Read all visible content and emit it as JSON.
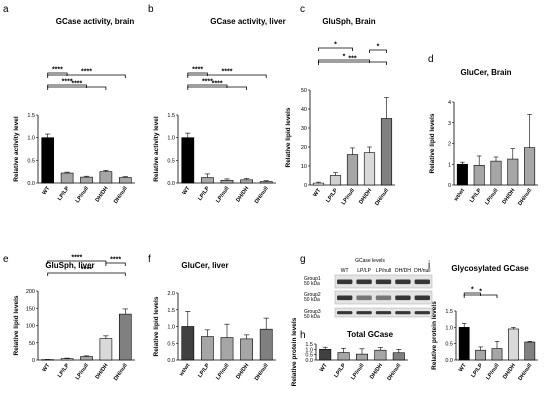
{
  "chart_data": [
    {
      "id": "a",
      "type": "bar",
      "panel_label": "a",
      "title": "GCase activity, brain",
      "ylabel": "Relative activity level",
      "categories": [
        "WT",
        "LP/LP",
        "LP/null",
        "DH/DH",
        "DH/null"
      ],
      "values": [
        1.0,
        0.22,
        0.13,
        0.25,
        0.12
      ],
      "errors": [
        0.08,
        0.02,
        0.02,
        0.03,
        0.02
      ],
      "colors": [
        "#000000",
        "#a6a6a6",
        "#a6a6a6",
        "#a6a6a6",
        "#a6a6a6"
      ],
      "ylim": [
        0,
        1.5
      ],
      "yticks": [
        0.0,
        0.5,
        1.0,
        1.5
      ],
      "tick_labels": [
        "0.0",
        "0.5",
        "1.0",
        "1.5"
      ],
      "sig": [
        {
          "from": 0,
          "to": 1,
          "label": "****"
        },
        {
          "from": 0,
          "to": 2,
          "label": "****"
        },
        {
          "from": 0,
          "to": 3,
          "label": "****"
        },
        {
          "from": 0,
          "to": 4,
          "label": "****"
        }
      ]
    },
    {
      "id": "b",
      "type": "bar",
      "panel_label": "b",
      "title": "GCase activity, liver",
      "ylabel": "Relative activity level",
      "categories": [
        "WT",
        "LP/LP",
        "LP/null",
        "DH/DH",
        "DH/null"
      ],
      "values": [
        1.0,
        0.12,
        0.06,
        0.07,
        0.03
      ],
      "errors": [
        0.1,
        0.08,
        0.03,
        0.03,
        0.02
      ],
      "colors": [
        "#000000",
        "#a6a6a6",
        "#a6a6a6",
        "#a6a6a6",
        "#a6a6a6"
      ],
      "ylim": [
        0,
        1.5
      ],
      "yticks": [
        0.0,
        0.5,
        1.0,
        1.5
      ],
      "tick_labels": [
        "0.0",
        "0.5",
        "1.0",
        "1.5"
      ],
      "sig": [
        {
          "from": 0,
          "to": 1,
          "label": "****"
        },
        {
          "from": 0,
          "to": 2,
          "label": "****"
        },
        {
          "from": 0,
          "to": 3,
          "label": "****"
        },
        {
          "from": 0,
          "to": 4,
          "label": "****"
        }
      ]
    },
    {
      "id": "c",
      "type": "bar",
      "panel_label": "c",
      "title": "GluSph, Brain",
      "ylabel": "Relative lipid levels",
      "categories": [
        "WT",
        "LP/LP",
        "LP/null",
        "DH/DH",
        "DH/null"
      ],
      "values": [
        1,
        5,
        16,
        17,
        35
      ],
      "errors": [
        0.5,
        1.5,
        3.5,
        3,
        11
      ],
      "colors": [
        "#ffffff",
        "#d0d0d0",
        "#a6a6a6",
        "#d9d9d9",
        "#808080"
      ],
      "ylim": [
        0,
        50
      ],
      "yticks": [
        0,
        10,
        20,
        30,
        40,
        50
      ],
      "tick_labels": [
        "0",
        "10",
        "20",
        "30",
        "40",
        "50"
      ],
      "sig": [
        {
          "from": 0,
          "to": 2,
          "label": "*"
        },
        {
          "from": 0,
          "to": 3,
          "label": "*"
        },
        {
          "from": 0,
          "to": 4,
          "label": "***"
        },
        {
          "from": 3,
          "to": 4,
          "label": "*"
        }
      ]
    },
    {
      "id": "d",
      "type": "bar",
      "panel_label": "d",
      "title": "GluCer, Brain",
      "ylabel": "Relative lipid levels",
      "categories": [
        "wt/wt",
        "LP/LP",
        "LP/null",
        "DH/DH",
        "DH/null"
      ],
      "values": [
        1.0,
        0.95,
        1.15,
        1.25,
        1.8
      ],
      "errors": [
        0.1,
        0.45,
        0.2,
        0.5,
        1.6
      ],
      "colors": [
        "#000000",
        "#a6a6a6",
        "#a6a6a6",
        "#a6a6a6",
        "#a6a6a6"
      ],
      "ylim": [
        0,
        4
      ],
      "yticks": [
        0,
        1,
        2,
        3,
        4
      ],
      "tick_labels": [
        "0",
        "1",
        "2",
        "3",
        "4"
      ],
      "sig": []
    },
    {
      "id": "e",
      "type": "bar",
      "panel_label": "e",
      "title": "GluSph, liver",
      "ylabel": "Relative lipid levels",
      "categories": [
        "WT",
        "LP/LP",
        "LP/null",
        "DH/DH",
        "DH/null"
      ],
      "values": [
        1,
        4,
        10,
        62,
        133
      ],
      "errors": [
        0.5,
        1.5,
        2,
        8,
        15
      ],
      "colors": [
        "#ffffff",
        "#d0d0d0",
        "#a6a6a6",
        "#d9d9d9",
        "#808080"
      ],
      "ylim": [
        0,
        200
      ],
      "yticks": [
        0,
        50,
        100,
        150,
        200
      ],
      "tick_labels": [
        "0",
        "50",
        "100",
        "150",
        "200"
      ],
      "sig": [
        {
          "from": 0,
          "to": 3,
          "label": "****"
        },
        {
          "from": 0,
          "to": 4,
          "label": "****"
        },
        {
          "from": 3,
          "to": 4,
          "label": "****"
        }
      ]
    },
    {
      "id": "f",
      "type": "bar",
      "panel_label": "f",
      "title": "GluCer, liver",
      "ylabel": "Relative lipid levels",
      "categories": [
        "wt/wt",
        "LP/LP",
        "LP/null",
        "DH/DH",
        "DH/null"
      ],
      "values": [
        1.0,
        0.7,
        0.67,
        0.63,
        0.92
      ],
      "errors": [
        0.45,
        0.2,
        0.4,
        0.12,
        0.33
      ],
      "colors": [
        "#404040",
        "#a6a6a6",
        "#a6a6a6",
        "#a6a6a6",
        "#808080"
      ],
      "ylim": [
        0,
        2.0
      ],
      "yticks": [
        0.0,
        0.5,
        1.0,
        1.5,
        2.0
      ],
      "tick_labels": [
        "0.0",
        "0.5",
        "1.0",
        "1.5",
        "2.0"
      ],
      "sig": []
    },
    {
      "id": "h",
      "type": "bar",
      "panel_label": "h",
      "title": "Total GCase",
      "ylabel": "Relative protein levels",
      "categories": [
        "WT",
        "LP/LP",
        "LP/null",
        "DH/DH",
        "DH/null"
      ],
      "values": [
        1.0,
        0.7,
        0.55,
        0.92,
        0.68
      ],
      "errors": [
        0.2,
        0.4,
        0.5,
        0.25,
        0.32
      ],
      "colors": [
        "#404040",
        "#a6a6a6",
        "#a6a6a6",
        "#a6a6a6",
        "#808080"
      ],
      "ylim": [
        0,
        1.5
      ],
      "yticks": [
        0.0,
        0.5,
        1.0,
        1.5
      ],
      "tick_labels": [
        "0.0",
        "0.5",
        "1.0",
        "1.5"
      ],
      "sig": []
    },
    {
      "id": "i",
      "type": "bar",
      "panel_label": "i",
      "title": "Glycosylated GCase",
      "ylabel": "Relative protein levels",
      "categories": [
        "WT",
        "LP/LP",
        "LP/null",
        "DH/DH",
        "DH/null"
      ],
      "values": [
        1.0,
        0.3,
        0.35,
        0.95,
        0.55
      ],
      "errors": [
        0.12,
        0.1,
        0.22,
        0.05,
        0.02
      ],
      "colors": [
        "#000000",
        "#a6a6a6",
        "#a6a6a6",
        "#d9d9d9",
        "#808080"
      ],
      "ylim": [
        0,
        1.5
      ],
      "yticks": [
        0.0,
        0.5,
        1.0,
        1.5
      ],
      "tick_labels": [
        "0.0",
        "0.5",
        "1.0",
        "1.5"
      ],
      "sig": [
        {
          "from": 0,
          "to": 1,
          "label": "*"
        },
        {
          "from": 0,
          "to": 2,
          "label": "*"
        }
      ]
    }
  ],
  "western_blot": {
    "panel_label": "g",
    "title": "GCase levels",
    "lanes": [
      "WT",
      "LP/LP",
      "LP/null",
      "DH/DH",
      "DH/null"
    ],
    "rows": [
      {
        "label": "Group1",
        "marker": "50 kDa"
      },
      {
        "label": "Group2",
        "marker": "50 kDa"
      },
      {
        "label": "Group3",
        "marker": "50 kDa"
      }
    ]
  }
}
